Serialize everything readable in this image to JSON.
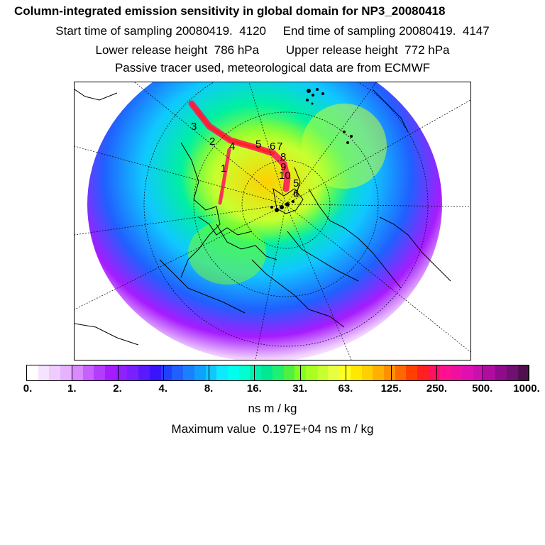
{
  "title": "Column-integrated emission sensitivity in global domain for NP3_20080418",
  "subtitle_time": "Start time of sampling 20080419.  4120     End time of sampling 20080419.  4147",
  "subtitle_height": "Lower release height  786 hPa        Upper release height  772 hPa",
  "subtitle_source": "Passive tracer used, meteorological data are from ECMWF",
  "colorbar": {
    "unit": "ns m / kg",
    "tick_labels": [
      "0.",
      "1.",
      "2.",
      "4.",
      "8.",
      "16.",
      "31.",
      "63.",
      "125.",
      "250.",
      "500.",
      "1000."
    ],
    "colors": [
      "#ffffff",
      "#f6e3ff",
      "#efccff",
      "#e6b2ff",
      "#d98aff",
      "#c660ff",
      "#b33cff",
      "#a61cff",
      "#8f20ff",
      "#7a20ff",
      "#5a1aff",
      "#3a14ff",
      "#2040ff",
      "#2060ff",
      "#1a80ff",
      "#10a0ff",
      "#10c8ff",
      "#10e8ff",
      "#00ffee",
      "#00ffd0",
      "#00f0b0",
      "#00e890",
      "#20f070",
      "#50f040",
      "#80ff20",
      "#a8ff20",
      "#c8ff30",
      "#e8ff40",
      "#ffff20",
      "#ffe800",
      "#ffd000",
      "#ffb000",
      "#ff9000",
      "#ff6800",
      "#ff4000",
      "#ff2020",
      "#ff1060",
      "#ff1090",
      "#f010a0",
      "#e010b0",
      "#c810b0",
      "#b00ca0",
      "#900a8c",
      "#701070",
      "#501050"
    ]
  },
  "max_value": "Maximum value  0.197E+04 ns m / kg",
  "trajectory_labels": [
    "1",
    "2",
    "3",
    "4",
    "5",
    "6",
    "7",
    "8",
    "9",
    "10",
    "5",
    "6"
  ]
}
